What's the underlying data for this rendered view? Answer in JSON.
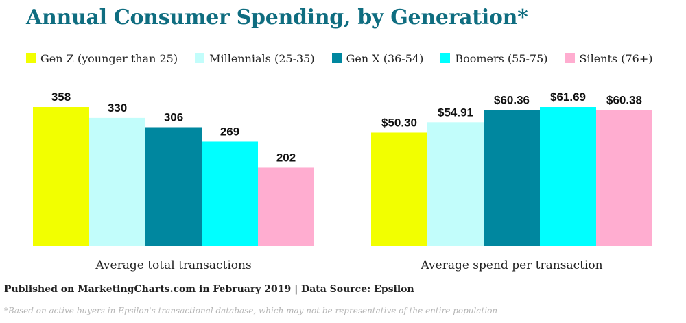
{
  "chart_data": {
    "type": "bar",
    "title": "Annual Consumer Spending, by Generation*",
    "series": [
      {
        "name": "Gen Z (younger than 25)",
        "color": "#f2ff00"
      },
      {
        "name": "Millennials (25-35)",
        "color": "#c2fdfb"
      },
      {
        "name": "Gen X (36-54)",
        "color": "#00879f"
      },
      {
        "name": "Boomers (55-75)",
        "color": "#00ffff"
      },
      {
        "name": "Silents (76+)",
        "color": "#ffadd0"
      }
    ],
    "groups": [
      {
        "label": "Average total transactions",
        "values": [
          358,
          330,
          306,
          269,
          202
        ],
        "value_labels": [
          "358",
          "330",
          "306",
          "269",
          "202"
        ],
        "ylim": [
          0,
          358
        ]
      },
      {
        "label": "Average spend per transaction",
        "values": [
          50.3,
          54.91,
          60.36,
          61.69,
          60.38
        ],
        "value_labels": [
          "$50.30",
          "$54.91",
          "$60.36",
          "$61.69",
          "$60.38"
        ],
        "ylim": [
          0,
          61.69
        ]
      }
    ],
    "legend_position": "top",
    "grid": false
  },
  "footer": {
    "source": "Published on MarketingCharts.com in February 2019 | Data Source: Epsilon",
    "note": "*Based on active buyers in Epsilon's transactional database, which may not be representative of the entire population"
  }
}
